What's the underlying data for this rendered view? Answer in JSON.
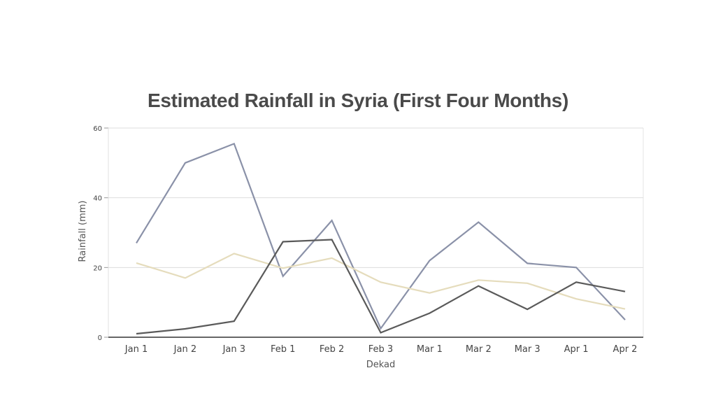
{
  "chart_data": {
    "type": "line",
    "title": "Estimated Rainfall in Syria (First Four Months)",
    "xlabel": "Dekad",
    "ylabel": "Rainfall (mm)",
    "categories": [
      "Jan 1",
      "Jan 2",
      "Jan 3",
      "Feb 1",
      "Feb 2",
      "Feb 3",
      "Mar 1",
      "Mar 2",
      "Mar 3",
      "Apr 1",
      "Apr 2"
    ],
    "ylim": [
      0,
      60
    ],
    "yticks": [
      0,
      20,
      40,
      60
    ],
    "grid": true,
    "series": [
      {
        "color": "#8a91a8",
        "values": [
          27,
          50,
          55.5,
          17.5,
          33.5,
          2.5,
          22,
          33,
          21.2,
          20,
          5
        ]
      },
      {
        "color": "#e5dcbc",
        "values": [
          21.3,
          17,
          24,
          19.8,
          22.7,
          15.8,
          12.7,
          16.4,
          15.5,
          11,
          8.1
        ]
      },
      {
        "color": "#5a5a5a",
        "values": [
          1,
          2.4,
          4.6,
          27.4,
          28,
          1.3,
          6.9,
          14.7,
          8,
          15.8,
          13.1
        ]
      }
    ]
  }
}
